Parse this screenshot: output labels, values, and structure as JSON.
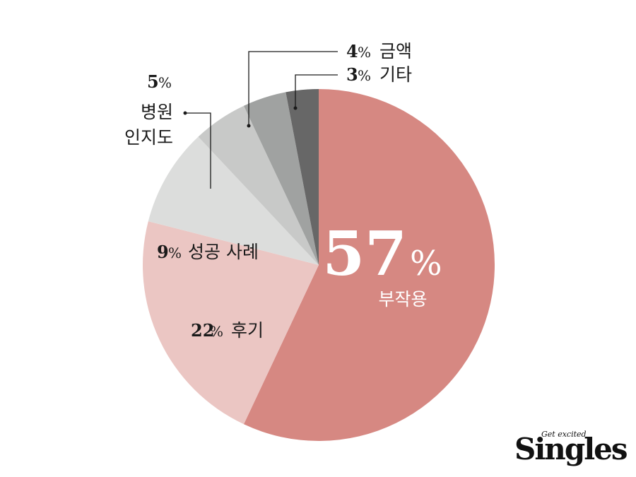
{
  "chart_data": {
    "type": "pie",
    "title": "",
    "slices": [
      {
        "value": 57,
        "pct_text": "57",
        "label": "부작용",
        "color": "#d68882"
      },
      {
        "value": 22,
        "pct_text": "22",
        "label": "후기",
        "color": "#ebc6c3"
      },
      {
        "value": 9,
        "pct_text": "9",
        "label": "성공 사례",
        "color": "#dcdddc"
      },
      {
        "value": 5,
        "pct_text": "5",
        "label_lines": [
          "병원",
          "인지도"
        ],
        "color": "#c8c9c8"
      },
      {
        "value": 4,
        "pct_text": "4",
        "label": "금액",
        "color": "#a0a2a1"
      },
      {
        "value": 3,
        "pct_text": "3",
        "label": "기타",
        "color": "#676767"
      }
    ],
    "percent_sign": "%"
  },
  "brand": {
    "name": "Singles",
    "tagline": "Get excited"
  }
}
